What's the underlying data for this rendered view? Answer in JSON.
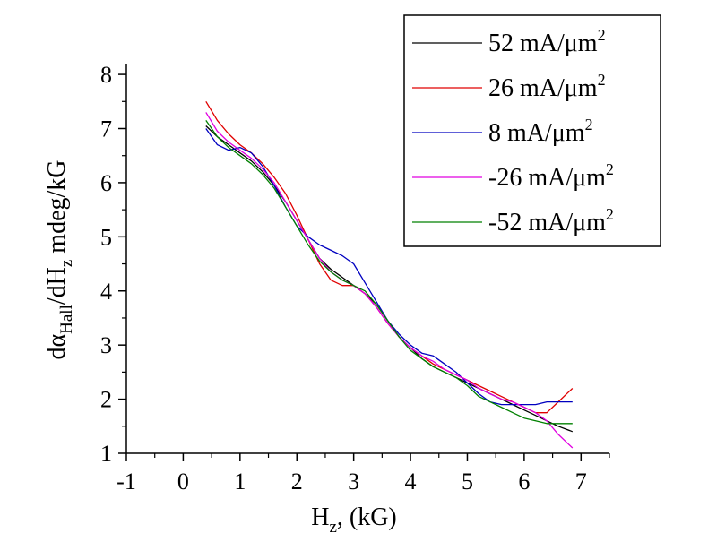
{
  "chart_data": {
    "type": "line",
    "xlabel": {
      "main": "H",
      "sub": "z",
      "tail": ", (kG)"
    },
    "ylabel": {
      "p1": "dα",
      "s1": "Hall",
      "p2": "/dH",
      "s2": "z",
      "p3": " mdeg/kG"
    },
    "xlim": [
      -1,
      7.5
    ],
    "ylim": [
      1,
      8.2
    ],
    "xticks": [
      "-1",
      "0",
      "1",
      "2",
      "3",
      "4",
      "5",
      "6",
      "7"
    ],
    "yticks": [
      "1",
      "2",
      "3",
      "4",
      "5",
      "6",
      "7",
      "8"
    ],
    "grid": false,
    "legend_position": "top-right",
    "series": [
      {
        "name": "52 mA/μm",
        "name_sup": "2",
        "color": "#000000",
        "points": [
          [
            0.4,
            7.05
          ],
          [
            0.6,
            6.85
          ],
          [
            0.8,
            6.7
          ],
          [
            1.0,
            6.55
          ],
          [
            1.2,
            6.4
          ],
          [
            1.4,
            6.2
          ],
          [
            1.6,
            5.95
          ],
          [
            1.8,
            5.65
          ],
          [
            2.0,
            5.3
          ],
          [
            2.2,
            4.95
          ],
          [
            2.4,
            4.6
          ],
          [
            2.6,
            4.4
          ],
          [
            2.8,
            4.25
          ],
          [
            3.0,
            4.1
          ],
          [
            3.2,
            3.95
          ],
          [
            3.4,
            3.75
          ],
          [
            3.6,
            3.45
          ],
          [
            3.8,
            3.15
          ],
          [
            4.0,
            2.95
          ],
          [
            4.2,
            2.75
          ],
          [
            4.4,
            2.6
          ],
          [
            4.6,
            2.5
          ],
          [
            4.8,
            2.4
          ],
          [
            5.0,
            2.3
          ],
          [
            5.2,
            2.2
          ],
          [
            5.4,
            2.1
          ],
          [
            5.6,
            2.0
          ],
          [
            5.8,
            1.9
          ],
          [
            6.0,
            1.8
          ],
          [
            6.2,
            1.7
          ],
          [
            6.4,
            1.6
          ],
          [
            6.6,
            1.5
          ],
          [
            6.85,
            1.4
          ]
        ]
      },
      {
        "name": "26 mA/μm",
        "name_sup": "2",
        "color": "#e00000",
        "points": [
          [
            0.4,
            7.5
          ],
          [
            0.6,
            7.15
          ],
          [
            0.8,
            6.9
          ],
          [
            1.0,
            6.7
          ],
          [
            1.2,
            6.55
          ],
          [
            1.4,
            6.35
          ],
          [
            1.6,
            6.1
          ],
          [
            1.8,
            5.8
          ],
          [
            2.0,
            5.4
          ],
          [
            2.2,
            4.95
          ],
          [
            2.4,
            4.5
          ],
          [
            2.6,
            4.2
          ],
          [
            2.8,
            4.1
          ],
          [
            3.0,
            4.1
          ],
          [
            3.2,
            3.95
          ],
          [
            3.4,
            3.7
          ],
          [
            3.6,
            3.4
          ],
          [
            3.8,
            3.15
          ],
          [
            4.0,
            2.95
          ],
          [
            4.2,
            2.8
          ],
          [
            4.4,
            2.65
          ],
          [
            4.6,
            2.55
          ],
          [
            4.8,
            2.45
          ],
          [
            5.0,
            2.35
          ],
          [
            5.2,
            2.25
          ],
          [
            5.4,
            2.15
          ],
          [
            5.6,
            2.05
          ],
          [
            5.8,
            1.95
          ],
          [
            6.0,
            1.85
          ],
          [
            6.2,
            1.75
          ],
          [
            6.4,
            1.75
          ],
          [
            6.6,
            1.95
          ],
          [
            6.85,
            2.2
          ]
        ]
      },
      {
        "name": "8 mA/μm",
        "name_sup": "2",
        "color": "#0000c0",
        "points": [
          [
            0.4,
            7.0
          ],
          [
            0.6,
            6.7
          ],
          [
            0.8,
            6.6
          ],
          [
            1.0,
            6.65
          ],
          [
            1.2,
            6.55
          ],
          [
            1.4,
            6.3
          ],
          [
            1.6,
            5.95
          ],
          [
            1.8,
            5.55
          ],
          [
            2.0,
            5.2
          ],
          [
            2.2,
            5.0
          ],
          [
            2.4,
            4.85
          ],
          [
            2.6,
            4.75
          ],
          [
            2.8,
            4.65
          ],
          [
            3.0,
            4.5
          ],
          [
            3.2,
            4.15
          ],
          [
            3.4,
            3.8
          ],
          [
            3.6,
            3.45
          ],
          [
            3.8,
            3.2
          ],
          [
            4.0,
            3.0
          ],
          [
            4.2,
            2.85
          ],
          [
            4.4,
            2.8
          ],
          [
            4.6,
            2.65
          ],
          [
            4.8,
            2.5
          ],
          [
            5.0,
            2.3
          ],
          [
            5.2,
            2.1
          ],
          [
            5.4,
            1.95
          ],
          [
            5.6,
            1.9
          ],
          [
            5.8,
            1.9
          ],
          [
            6.0,
            1.9
          ],
          [
            6.2,
            1.9
          ],
          [
            6.4,
            1.95
          ],
          [
            6.6,
            1.95
          ],
          [
            6.85,
            1.95
          ]
        ]
      },
      {
        "name": "-26 mA/μm",
        "name_sup": "2",
        "color": "#e000e0",
        "points": [
          [
            0.4,
            7.3
          ],
          [
            0.6,
            6.95
          ],
          [
            0.8,
            6.75
          ],
          [
            1.0,
            6.6
          ],
          [
            1.2,
            6.45
          ],
          [
            1.4,
            6.25
          ],
          [
            1.6,
            6.0
          ],
          [
            1.8,
            5.65
          ],
          [
            2.0,
            5.3
          ],
          [
            2.2,
            4.95
          ],
          [
            2.4,
            4.6
          ],
          [
            2.6,
            4.35
          ],
          [
            2.8,
            4.2
          ],
          [
            3.0,
            4.1
          ],
          [
            3.2,
            3.95
          ],
          [
            3.4,
            3.7
          ],
          [
            3.6,
            3.4
          ],
          [
            3.8,
            3.15
          ],
          [
            4.0,
            2.95
          ],
          [
            4.2,
            2.8
          ],
          [
            4.4,
            2.7
          ],
          [
            4.6,
            2.55
          ],
          [
            4.8,
            2.45
          ],
          [
            5.0,
            2.35
          ],
          [
            5.2,
            2.2
          ],
          [
            5.4,
            2.1
          ],
          [
            5.6,
            2.0
          ],
          [
            5.8,
            1.95
          ],
          [
            6.0,
            1.85
          ],
          [
            6.2,
            1.75
          ],
          [
            6.4,
            1.6
          ],
          [
            6.6,
            1.35
          ],
          [
            6.85,
            1.1
          ]
        ]
      },
      {
        "name": "-52 mA/μm",
        "name_sup": "2",
        "color": "#008000",
        "points": [
          [
            0.4,
            7.15
          ],
          [
            0.6,
            6.85
          ],
          [
            0.8,
            6.65
          ],
          [
            1.0,
            6.5
          ],
          [
            1.2,
            6.35
          ],
          [
            1.4,
            6.15
          ],
          [
            1.6,
            5.9
          ],
          [
            1.8,
            5.55
          ],
          [
            2.0,
            5.2
          ],
          [
            2.2,
            4.85
          ],
          [
            2.4,
            4.55
          ],
          [
            2.6,
            4.35
          ],
          [
            2.8,
            4.2
          ],
          [
            3.0,
            4.1
          ],
          [
            3.2,
            4.0
          ],
          [
            3.4,
            3.75
          ],
          [
            3.6,
            3.45
          ],
          [
            3.8,
            3.15
          ],
          [
            4.0,
            2.9
          ],
          [
            4.2,
            2.75
          ],
          [
            4.4,
            2.6
          ],
          [
            4.6,
            2.5
          ],
          [
            4.8,
            2.4
          ],
          [
            5.0,
            2.25
          ],
          [
            5.2,
            2.05
          ],
          [
            5.4,
            1.95
          ],
          [
            5.6,
            1.85
          ],
          [
            5.8,
            1.75
          ],
          [
            6.0,
            1.65
          ],
          [
            6.2,
            1.6
          ],
          [
            6.4,
            1.55
          ],
          [
            6.6,
            1.55
          ],
          [
            6.85,
            1.55
          ]
        ]
      }
    ]
  }
}
